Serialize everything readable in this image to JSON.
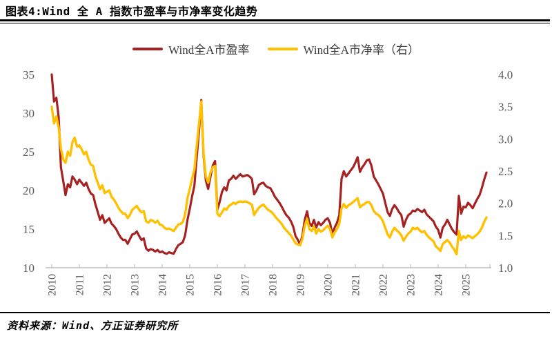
{
  "header": {
    "title": "图表4:Wind 全 A 指数市盈率与市净率变化趋势"
  },
  "footer": {
    "source": "资料来源：Wind、方正证券研究所"
  },
  "chart_data": {
    "type": "line",
    "title": "Wind 全 A 指数市盈率与市净率变化趋势",
    "x_unit": "month",
    "x_start": "2010-01",
    "x_end": "2025-10",
    "x_tick_labels": [
      "2010",
      "2011",
      "2012",
      "2013",
      "2014",
      "2015",
      "2016",
      "2017",
      "2018",
      "2019",
      "2020",
      "2021",
      "2022",
      "2023",
      "2024",
      "2025"
    ],
    "left_axis": {
      "min": 10,
      "max": 35,
      "ticks": [
        "35",
        "30",
        "25",
        "20",
        "15",
        "10"
      ]
    },
    "right_axis": {
      "min": 1.0,
      "max": 4.0,
      "ticks": [
        "4.0",
        "3.5",
        "3.0",
        "2.5",
        "2.0",
        "1.5",
        "1.0"
      ]
    },
    "grid": false,
    "legend_position": "top-center",
    "axis_color": "#BFBFBF",
    "tick_label_color": "#595959",
    "series": [
      {
        "name": "Wind全A市盈率",
        "axis": "left",
        "color": "#A62121",
        "values": [
          35.0,
          31.5,
          32.0,
          29.5,
          23.0,
          21.2,
          19.4,
          20.8,
          20.4,
          21.8,
          21.4,
          20.8,
          21.4,
          21.0,
          20.6,
          21.0,
          20.2,
          19.6,
          19.4,
          18.2,
          17.2,
          16.2,
          16.8,
          15.8,
          16.1,
          16.4,
          15.7,
          15.4,
          15.0,
          14.4,
          13.9,
          13.6,
          13.6,
          13.1,
          13.7,
          14.3,
          14.4,
          14.7,
          14.1,
          13.6,
          13.8,
          12.5,
          12.2,
          12.4,
          12.3,
          12.1,
          12.3,
          12.0,
          12.1,
          11.9,
          11.8,
          12.0,
          11.9,
          11.8,
          12.4,
          12.9,
          13.1,
          13.3,
          14.2,
          16.2,
          17.6,
          19.2,
          20.6,
          24.2,
          27.6,
          31.7,
          24.5,
          21.3,
          20.2,
          21.8,
          23.2,
          23.8,
          17.5,
          18.5,
          19.8,
          20.4,
          20.0,
          21.3,
          21.5,
          21.9,
          21.5,
          21.8,
          22.1,
          21.8,
          21.9,
          22.0,
          21.8,
          21.5,
          19.5,
          20.0,
          20.7,
          20.9,
          21.0,
          20.6,
          20.4,
          20.3,
          19.8,
          19.2,
          18.8,
          18.4,
          17.9,
          17.3,
          16.8,
          16.5,
          16.0,
          15.3,
          14.1,
          13.6,
          13.0,
          14.2,
          16.2,
          17.3,
          15.8,
          15.4,
          16.2,
          15.2,
          15.9,
          15.5,
          15.8,
          16.2,
          16.4,
          15.8,
          14.3,
          15.2,
          15.8,
          16.8,
          21.5,
          22.5,
          21.8,
          22.2,
          22.6,
          23.0,
          23.6,
          24.3,
          22.4,
          23.0,
          23.4,
          23.9,
          24.0,
          23.2,
          21.8,
          21.3,
          20.8,
          20.2,
          19.6,
          18.4,
          17.2,
          16.7,
          17.6,
          18.1,
          17.7,
          17.2,
          16.8,
          15.3,
          16.2,
          16.8,
          17.0,
          17.4,
          17.3,
          17.6,
          17.4,
          17.2,
          17.5,
          16.9,
          16.6,
          16.3,
          16.0,
          15.3,
          14.9,
          13.9,
          15.2,
          15.6,
          16.2,
          15.6,
          15.0,
          14.6,
          14.3,
          19.3,
          17.0,
          17.9,
          17.8,
          18.4,
          18.1,
          17.7,
          18.3,
          18.9,
          19.4,
          20.3,
          21.4,
          22.3
        ]
      },
      {
        "name": "Wind全A市净率（右）",
        "axis": "right",
        "color": "#FFC000",
        "values": [
          3.5,
          3.24,
          3.35,
          3.18,
          2.85,
          2.68,
          2.63,
          2.8,
          2.74,
          2.95,
          3.02,
          2.88,
          2.9,
          2.84,
          2.76,
          2.8,
          2.68,
          2.6,
          2.58,
          2.42,
          2.32,
          2.22,
          2.28,
          2.16,
          2.18,
          2.2,
          2.1,
          2.06,
          2.0,
          1.93,
          1.88,
          1.84,
          1.84,
          1.77,
          1.82,
          1.9,
          1.93,
          1.96,
          1.9,
          1.86,
          1.88,
          1.72,
          1.7,
          1.74,
          1.73,
          1.7,
          1.73,
          1.67,
          1.66,
          1.62,
          1.6,
          1.61,
          1.59,
          1.57,
          1.62,
          1.67,
          1.68,
          1.71,
          1.83,
          2.08,
          2.22,
          2.38,
          2.52,
          2.88,
          3.22,
          3.58,
          2.78,
          2.42,
          2.32,
          2.48,
          2.56,
          2.58,
          1.84,
          1.8,
          1.86,
          1.92,
          1.9,
          1.96,
          1.98,
          2.01,
          1.99,
          2.02,
          2.03,
          2.02,
          2.03,
          2.02,
          2.0,
          1.98,
          1.82,
          1.88,
          1.93,
          1.96,
          1.98,
          1.94,
          1.9,
          1.88,
          1.85,
          1.8,
          1.76,
          1.72,
          1.68,
          1.62,
          1.58,
          1.54,
          1.5,
          1.44,
          1.38,
          1.36,
          1.35,
          1.45,
          1.65,
          1.76,
          1.6,
          1.57,
          1.64,
          1.53,
          1.6,
          1.56,
          1.58,
          1.62,
          1.65,
          1.6,
          1.47,
          1.55,
          1.6,
          1.68,
          1.92,
          1.99,
          1.93,
          1.97,
          1.99,
          2.02,
          2.05,
          2.08,
          1.94,
          1.97,
          1.99,
          2.02,
          2.02,
          1.97,
          1.88,
          1.84,
          1.82,
          1.78,
          1.72,
          1.62,
          1.52,
          1.47,
          1.56,
          1.62,
          1.58,
          1.55,
          1.5,
          1.42,
          1.48,
          1.53,
          1.56,
          1.62,
          1.6,
          1.62,
          1.58,
          1.55,
          1.57,
          1.51,
          1.47,
          1.44,
          1.41,
          1.33,
          1.3,
          1.26,
          1.37,
          1.4,
          1.43,
          1.39,
          1.33,
          1.28,
          1.21,
          1.57,
          1.43,
          1.49,
          1.46,
          1.5,
          1.48,
          1.46,
          1.49,
          1.52,
          1.56,
          1.62,
          1.71,
          1.78
        ]
      }
    ]
  }
}
